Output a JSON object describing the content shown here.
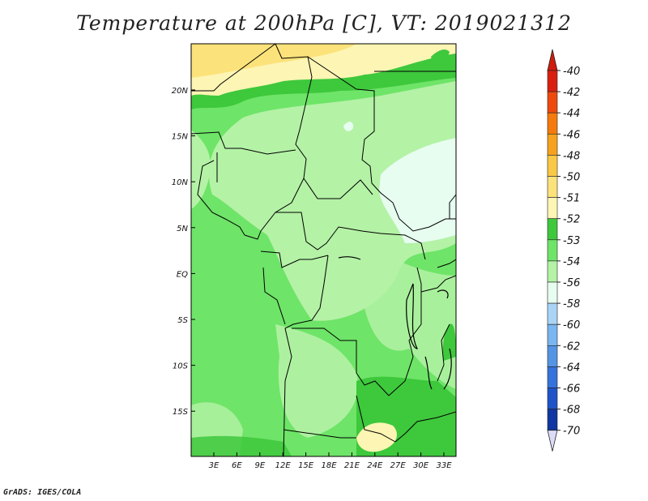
{
  "title": "Temperature at 200hPa [C], VT: 2019021312",
  "credit": "GrADS: IGES/COLA",
  "lat_labels": [
    "20N",
    "15N",
    "10N",
    "5N",
    "EQ",
    "5S",
    "10S",
    "15S"
  ],
  "lon_labels": [
    "3E",
    "6E",
    "9E",
    "12E",
    "15E",
    "18E",
    "21E",
    "24E",
    "27E",
    "30E",
    "33E"
  ],
  "colorbar": {
    "labels": [
      "-40",
      "-42",
      "-44",
      "-46",
      "-48",
      "-50",
      "-51",
      "-52",
      "-53",
      "-54",
      "-56",
      "-58",
      "-60",
      "-62",
      "-64",
      "-66",
      "-68",
      "-70"
    ],
    "colors": [
      "#d92010",
      "#ee4a0c",
      "#f57a0c",
      "#f7a21e",
      "#f9c844",
      "#fce27a",
      "#fdf5b4",
      "#3ec83c",
      "#6ee468",
      "#b4f2a6",
      "#e6fdf0",
      "#aad4f6",
      "#7ab6f0",
      "#5494e4",
      "#3672dc",
      "#1e54c8",
      "#0f36a2",
      "#0a1870"
    ],
    "top_arrow_color": "#d01c0c",
    "bottom_arrow_color": "#dcdcf8"
  }
}
